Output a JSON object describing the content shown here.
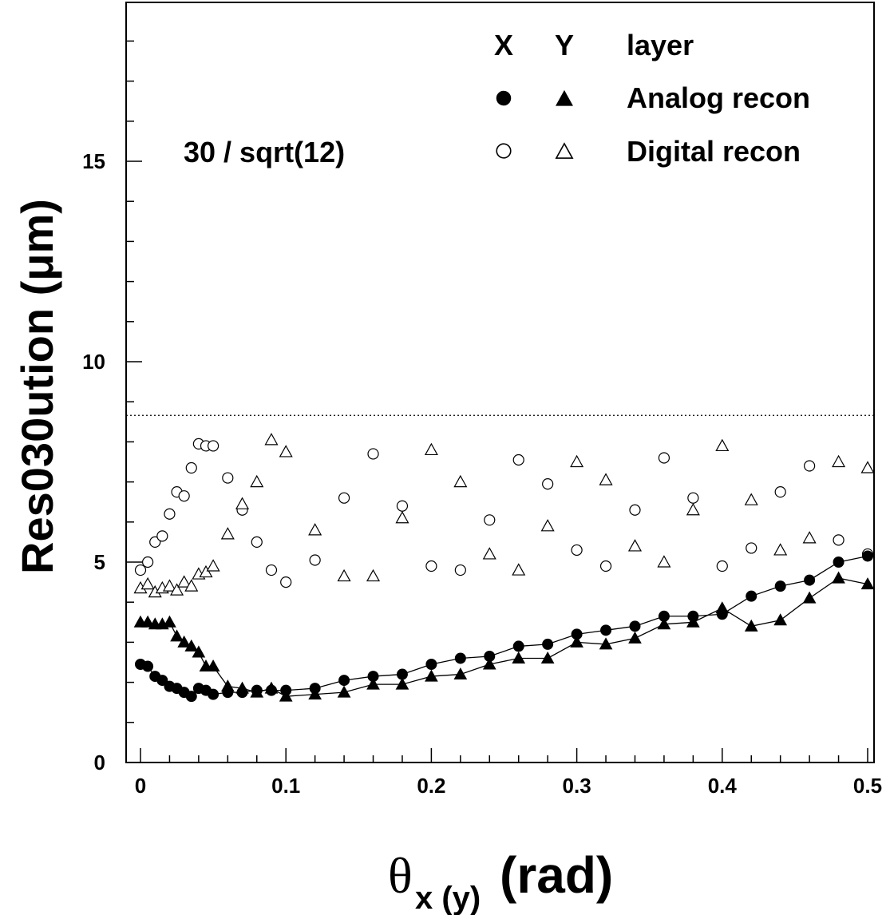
{
  "chart_data": {
    "type": "scatter",
    "title": "",
    "xlabel": {
      "symbol": "θ",
      "subscript": "x (y)",
      "text": "(rad)"
    },
    "ylabel": "Res030ution (μm)",
    "xlim": [
      -0.01,
      0.51
    ],
    "ylim": [
      0,
      19
    ],
    "x_ticks": [
      0,
      0.1,
      0.2,
      0.3,
      0.4,
      0.5
    ],
    "x_tick_labels": [
      "0",
      "0.1",
      "0.2",
      "0.3",
      "0.4",
      "0.5"
    ],
    "y_ticks": [
      0,
      5,
      10,
      15
    ],
    "y_tick_labels": [
      "0",
      "5",
      "10",
      "15"
    ],
    "grid": false,
    "legend": {
      "placement": "top-right",
      "column_headers": [
        "X",
        "Y",
        "layer"
      ],
      "rows": [
        "Analog recon",
        "Digital recon"
      ]
    },
    "annotation": {
      "text": "30 / sqrt(12)",
      "reference_line_y": 8.66
    },
    "series": [
      {
        "name": "Analog recon X",
        "marker": "filled-circle",
        "connected": true,
        "x": [
          0,
          0.005,
          0.01,
          0.015,
          0.02,
          0.025,
          0.03,
          0.035,
          0.04,
          0.045,
          0.05,
          0.06,
          0.07,
          0.08,
          0.09,
          0.1,
          0.12,
          0.14,
          0.16,
          0.18,
          0.2,
          0.22,
          0.24,
          0.26,
          0.28,
          0.3,
          0.32,
          0.34,
          0.36,
          0.38,
          0.4,
          0.42,
          0.44,
          0.46,
          0.48,
          0.5
        ],
        "y": [
          2.45,
          2.4,
          2.15,
          2.05,
          1.9,
          1.85,
          1.75,
          1.65,
          1.85,
          1.8,
          1.7,
          1.75,
          1.75,
          1.8,
          1.8,
          1.8,
          1.85,
          2.05,
          2.15,
          2.2,
          2.45,
          2.6,
          2.65,
          2.9,
          2.95,
          3.2,
          3.3,
          3.4,
          3.65,
          3.65,
          3.7,
          4.15,
          4.4,
          4.55,
          5.0,
          5.15
        ]
      },
      {
        "name": "Analog recon Y",
        "marker": "filled-triangle",
        "connected": true,
        "x": [
          0,
          0.005,
          0.01,
          0.015,
          0.02,
          0.025,
          0.03,
          0.035,
          0.04,
          0.045,
          0.05,
          0.06,
          0.07,
          0.08,
          0.09,
          0.1,
          0.12,
          0.14,
          0.16,
          0.18,
          0.2,
          0.22,
          0.24,
          0.26,
          0.28,
          0.3,
          0.32,
          0.34,
          0.36,
          0.38,
          0.4,
          0.42,
          0.44,
          0.46,
          0.48,
          0.5
        ],
        "y": [
          3.5,
          3.5,
          3.45,
          3.45,
          3.5,
          3.15,
          3.0,
          2.9,
          2.75,
          2.4,
          2.4,
          1.9,
          1.85,
          1.75,
          1.85,
          1.65,
          1.7,
          1.75,
          1.95,
          1.95,
          2.15,
          2.2,
          2.45,
          2.6,
          2.6,
          3.0,
          2.95,
          3.1,
          3.45,
          3.5,
          3.85,
          3.4,
          3.55,
          4.1,
          4.6,
          4.45
        ]
      },
      {
        "name": "Digital recon X",
        "marker": "open-circle",
        "connected": false,
        "x": [
          0,
          0.005,
          0.01,
          0.015,
          0.02,
          0.025,
          0.03,
          0.035,
          0.04,
          0.045,
          0.05,
          0.06,
          0.07,
          0.08,
          0.09,
          0.1,
          0.12,
          0.14,
          0.16,
          0.18,
          0.2,
          0.22,
          0.24,
          0.26,
          0.28,
          0.3,
          0.32,
          0.34,
          0.36,
          0.38,
          0.4,
          0.42,
          0.44,
          0.46,
          0.48,
          0.5
        ],
        "y": [
          4.8,
          5.0,
          5.5,
          5.65,
          6.2,
          6.75,
          6.65,
          7.35,
          7.95,
          7.9,
          7.9,
          7.1,
          6.3,
          5.5,
          4.8,
          4.5,
          5.05,
          6.6,
          7.7,
          6.4,
          4.9,
          4.8,
          6.05,
          7.55,
          6.95,
          5.3,
          4.9,
          6.3,
          7.6,
          6.6,
          4.9,
          5.35,
          6.75,
          7.4,
          5.55,
          5.2
        ]
      },
      {
        "name": "Digital recon Y",
        "marker": "open-triangle",
        "connected": false,
        "x": [
          0,
          0.005,
          0.01,
          0.015,
          0.02,
          0.025,
          0.03,
          0.035,
          0.04,
          0.045,
          0.05,
          0.06,
          0.07,
          0.08,
          0.09,
          0.1,
          0.12,
          0.14,
          0.16,
          0.18,
          0.2,
          0.22,
          0.24,
          0.26,
          0.28,
          0.3,
          0.32,
          0.34,
          0.36,
          0.38,
          0.4,
          0.42,
          0.44,
          0.46,
          0.48,
          0.5
        ],
        "y": [
          4.35,
          4.45,
          4.25,
          4.35,
          4.4,
          4.3,
          4.5,
          4.4,
          4.7,
          4.75,
          4.9,
          5.7,
          6.45,
          7.0,
          8.05,
          7.75,
          5.8,
          4.65,
          4.65,
          6.1,
          7.8,
          7.0,
          5.2,
          4.8,
          5.9,
          7.5,
          7.05,
          5.4,
          5.0,
          6.3,
          7.9,
          6.55,
          5.3,
          5.6,
          7.5,
          7.35
        ]
      }
    ]
  }
}
